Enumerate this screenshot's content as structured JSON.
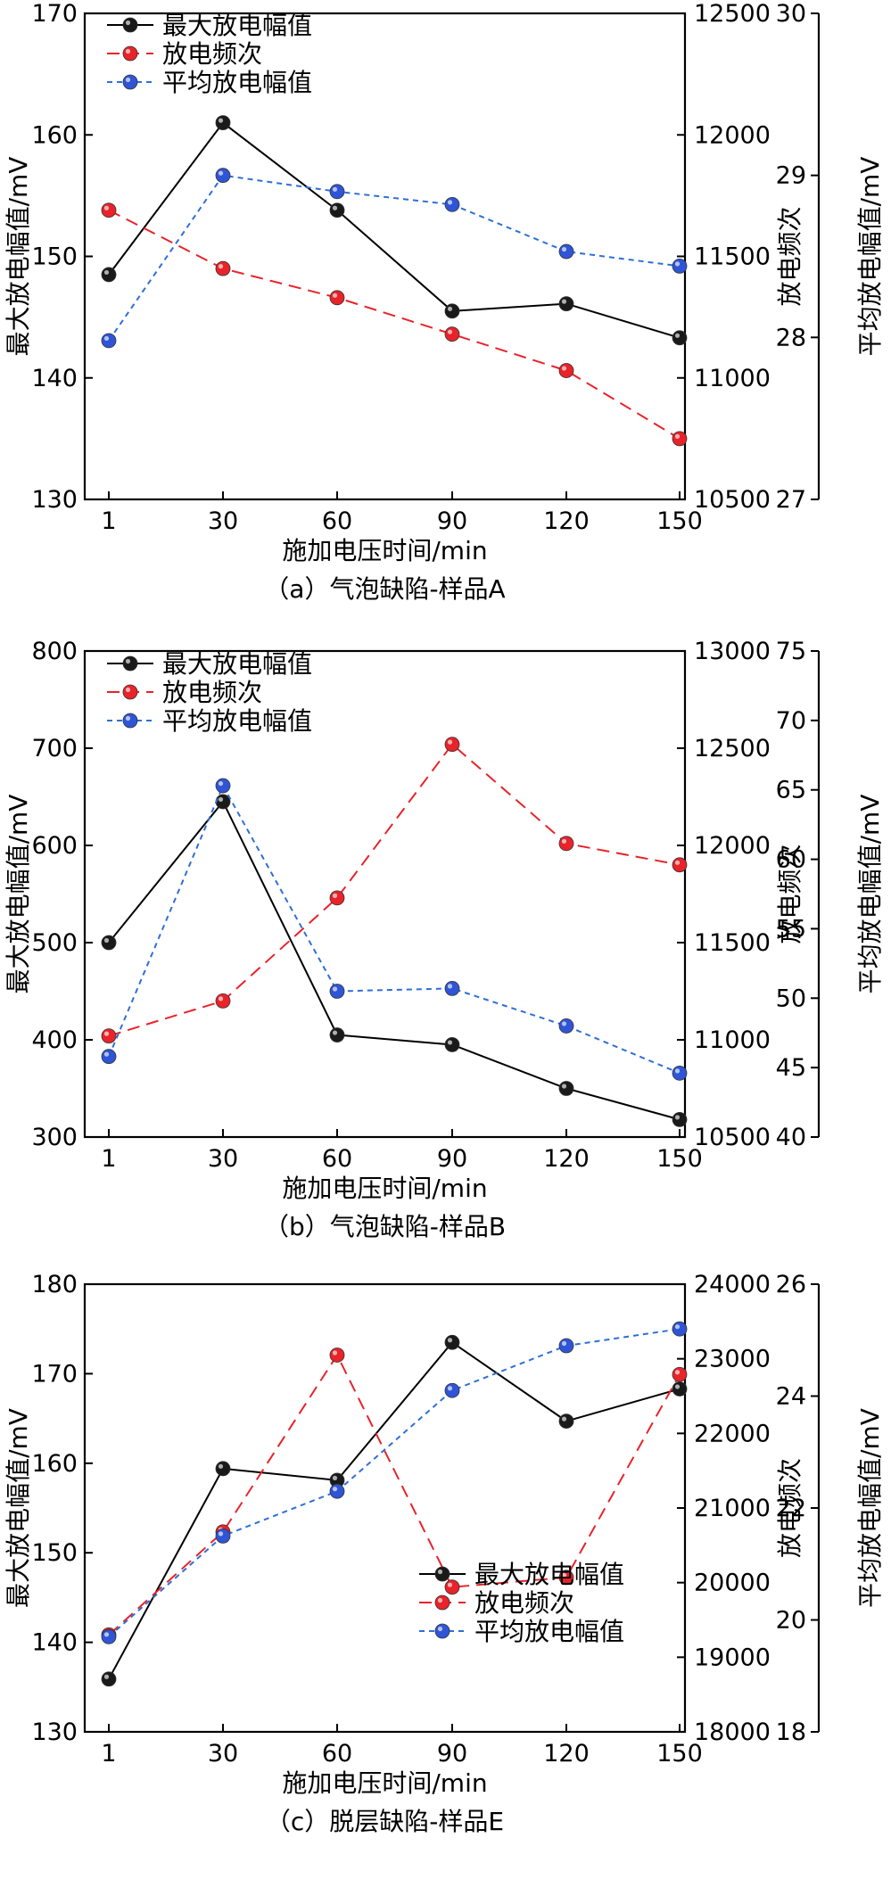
{
  "chart_data": [
    {
      "type": "line",
      "caption": "（a）气泡缺陷-样品A",
      "xlabel": "施加电压时间/min",
      "categories": [
        "1",
        "30",
        "60",
        "90",
        "120",
        "150"
      ],
      "axes": {
        "left": {
          "label": "最大放电幅值/mV",
          "range": [
            130,
            170
          ],
          "ticks": [
            "130",
            "140",
            "150",
            "160",
            "170"
          ]
        },
        "right1": {
          "label": "放电频次",
          "range": [
            10500,
            12500
          ],
          "ticks": [
            "10500",
            "11000",
            "11500",
            "12000",
            "12500"
          ]
        },
        "right2": {
          "label": "平均放电幅值/mV",
          "range": [
            27,
            30
          ],
          "ticks": [
            "27",
            "28",
            "29",
            "30"
          ]
        }
      },
      "legend_position": "top-left",
      "series": [
        {
          "name": "最大放电幅值",
          "axis": "left",
          "color": "#000000",
          "marker": "#1a1a1a",
          "dash": "solid",
          "values": [
            148.5,
            161,
            153.8,
            145.5,
            146.1,
            143.3
          ]
        },
        {
          "name": "放电频次",
          "axis": "right1",
          "color": "#e8232a",
          "marker": "#e8232a",
          "dash": "long",
          "values": [
            11690,
            11450,
            11330,
            11180,
            11030,
            10750
          ]
        },
        {
          "name": "平均放电幅值",
          "axis": "right2",
          "color": "#2f6fd6",
          "marker": "#2f55d6",
          "dash": "short",
          "values": [
            27.98,
            29.0,
            28.9,
            28.82,
            28.53,
            28.44
          ]
        }
      ]
    },
    {
      "type": "line",
      "caption": "（b）气泡缺陷-样品B",
      "xlabel": "施加电压时间/min",
      "categories": [
        "1",
        "30",
        "60",
        "90",
        "120",
        "150"
      ],
      "axes": {
        "left": {
          "label": "最大放电幅值/mV",
          "range": [
            300,
            800
          ],
          "ticks": [
            "300",
            "400",
            "500",
            "600",
            "700",
            "800"
          ]
        },
        "right1": {
          "label": "放电频次",
          "range": [
            10500,
            13000
          ],
          "ticks": [
            "10500",
            "11000",
            "11500",
            "12000",
            "12500",
            "13000"
          ]
        },
        "right2": {
          "label": "平均放电幅值/mV",
          "range": [
            40,
            75
          ],
          "ticks": [
            "40",
            "45",
            "50",
            "55",
            "60",
            "65",
            "70",
            "75"
          ]
        }
      },
      "legend_position": "top-left",
      "series": [
        {
          "name": "最大放电幅值",
          "axis": "left",
          "color": "#000000",
          "marker": "#1a1a1a",
          "dash": "solid",
          "values": [
            500,
            645,
            405,
            395,
            350,
            318
          ]
        },
        {
          "name": "放电频次",
          "axis": "right1",
          "color": "#e8232a",
          "marker": "#e8232a",
          "dash": "long",
          "values": [
            11020,
            11200,
            11730,
            12520,
            12010,
            11900
          ]
        },
        {
          "name": "平均放电幅值",
          "axis": "right2",
          "color": "#2f6fd6",
          "marker": "#2f55d6",
          "dash": "short",
          "values": [
            45.8,
            65.3,
            50.5,
            50.7,
            48.0,
            44.6
          ]
        }
      ]
    },
    {
      "type": "line",
      "caption": "（c）脱层缺陷-样品E",
      "xlabel": "施加电压时间/min",
      "categories": [
        "1",
        "30",
        "60",
        "90",
        "120",
        "150"
      ],
      "axes": {
        "left": {
          "label": "最大放电幅值/mV",
          "range": [
            130,
            180
          ],
          "ticks": [
            "130",
            "140",
            "150",
            "160",
            "170",
            "180"
          ]
        },
        "right1": {
          "label": "放电频次",
          "range": [
            18000,
            24000
          ],
          "ticks": [
            "18000",
            "19000",
            "20000",
            "21000",
            "22000",
            "23000",
            "24000"
          ]
        },
        "right2": {
          "label": "平均放电幅值/mV",
          "range": [
            18,
            26
          ],
          "ticks": [
            "18",
            "20",
            "22",
            "24",
            "26"
          ]
        }
      },
      "legend_position": "bottom-right",
      "series": [
        {
          "name": "最大放电幅值",
          "axis": "left",
          "color": "#000000",
          "marker": "#1a1a1a",
          "dash": "solid",
          "values": [
            135.9,
            159.4,
            158.1,
            173.5,
            164.7,
            168.3
          ]
        },
        {
          "name": "放电频次",
          "axis": "right1",
          "color": "#e8232a",
          "marker": "#e8232a",
          "dash": "long",
          "values": [
            19300,
            20680,
            23050,
            19940,
            20070,
            22790
          ]
        },
        {
          "name": "平均放电幅值",
          "axis": "right2",
          "color": "#2f6fd6",
          "marker": "#2f55d6",
          "dash": "short",
          "values": [
            19.7,
            21.5,
            22.3,
            24.1,
            24.9,
            25.2
          ]
        }
      ]
    }
  ]
}
